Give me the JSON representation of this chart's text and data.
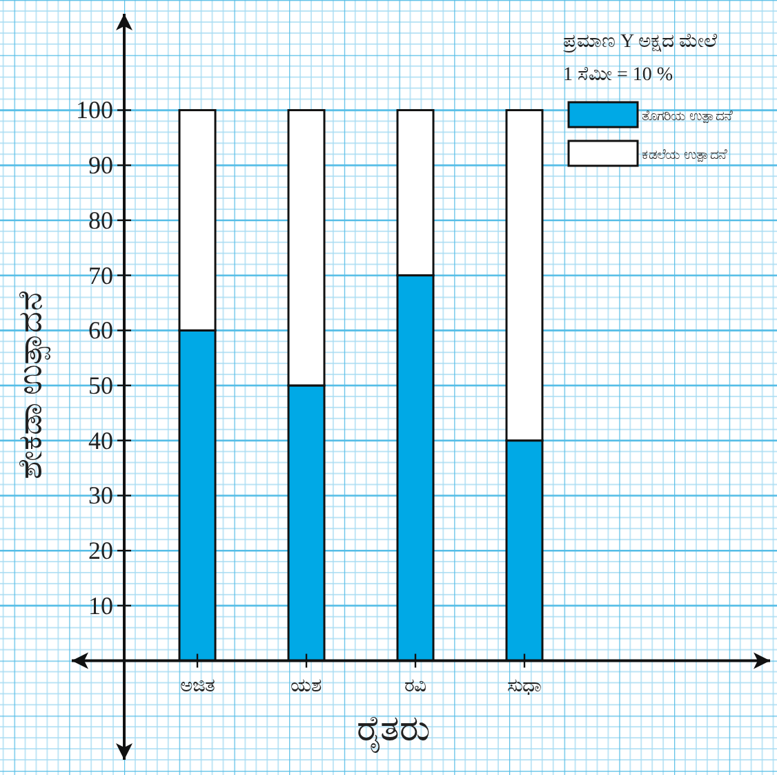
{
  "chart_data": {
    "type": "bar",
    "stacked": true,
    "xlabel": "ರೈತರು",
    "ylabel": "ಶೇಕಡಾ ಉತ್ಪಾದನೆ",
    "legend_title": "ಪ್ರಮಾಣ Y ಅಕ್ಷದ ಮೇಲೆ",
    "annotations": [
      "1 ಸೆಮೀ = 10 %"
    ],
    "categories": [
      "ಅಜಿತ",
      "ಯಶ",
      "ರವಿ",
      "ಸುಧಾ"
    ],
    "series": [
      {
        "name": "ತೊಗರಿಯ ಉತ್ಪಾದನೆ",
        "color": "#00a9e6",
        "values": [
          60,
          50,
          70,
          40
        ]
      },
      {
        "name": "ಕಡಲೆಯ ಉತ್ಪಾದನೆ",
        "color": "#ffffff",
        "values": [
          40,
          50,
          30,
          60
        ]
      }
    ],
    "ylim": [
      -18,
      118
    ],
    "yticks": [
      10,
      20,
      30,
      40,
      50,
      60,
      70,
      80,
      90,
      100
    ],
    "grid": true,
    "legend": "top right"
  }
}
